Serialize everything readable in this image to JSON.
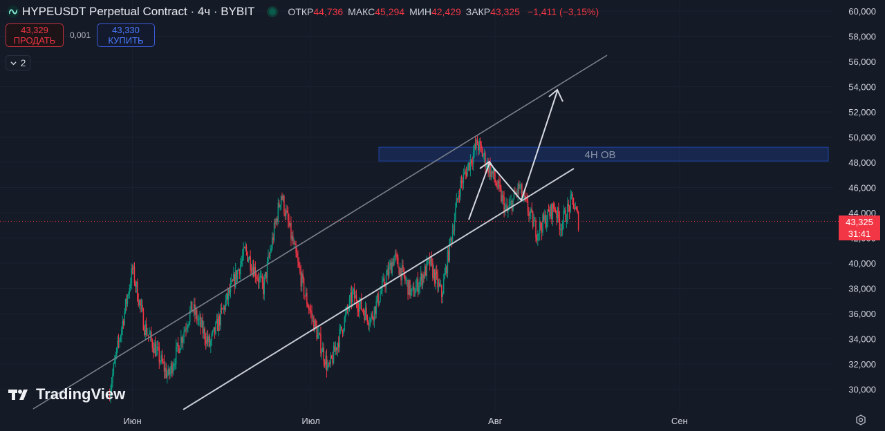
{
  "header": {
    "title": "HYPEUSDT Perpetual Contract · 4ч · BYBIT",
    "open_label": "ОТКР",
    "open_value": "44,736",
    "high_label": "МАКС",
    "high_value": "45,294",
    "low_label": "МИН",
    "low_value": "42,429",
    "close_label": "ЗАКР",
    "close_value": "43,325",
    "change": "−1,411 (−3,15%)"
  },
  "trade": {
    "sell_price": "43,329",
    "sell_label": "ПРОДАТЬ",
    "spread": "0,001",
    "buy_price": "43,330",
    "buy_label": "КУПИТЬ"
  },
  "indicators_collapse_count": "2",
  "brand": "TradingView",
  "price_tag": {
    "price": "43,325",
    "countdown": "31:41"
  },
  "colors": {
    "up": "#089981",
    "down": "#f23645",
    "background": "#141a26",
    "zone": "#2962ff"
  },
  "chart_data": {
    "type": "candlestick",
    "y_ticks": [
      "60,000",
      "58,000",
      "56,000",
      "54,000",
      "52,000",
      "50,000",
      "48,000",
      "46,000",
      "44,000",
      "42,000",
      "40,000",
      "38,000",
      "36,000",
      "34,000",
      "32,000",
      "30,000"
    ],
    "x_labels": [
      "Июн",
      "Июл",
      "Авг",
      "Сен"
    ],
    "ylim": [
      28500,
      60500
    ],
    "last_price": 43.325,
    "zone_label": "4H OB",
    "zone_range": [
      48.1,
      49.2
    ],
    "waypoints": [
      [
        "05-28",
        29.5
      ],
      [
        "06-01",
        39.5
      ],
      [
        "06-03",
        35.0
      ],
      [
        "06-07",
        31.0
      ],
      [
        "06-11",
        36.5
      ],
      [
        "06-14",
        33.5
      ],
      [
        "06-20",
        41.0
      ],
      [
        "06-23",
        38.0
      ],
      [
        "06-26",
        45.5
      ],
      [
        "06-30",
        37.5
      ],
      [
        "07-04",
        31.5
      ],
      [
        "07-08",
        37.5
      ],
      [
        "07-11",
        35.5
      ],
      [
        "07-15",
        40.5
      ],
      [
        "07-18",
        37.5
      ],
      [
        "07-21",
        40.0
      ],
      [
        "07-23",
        37.5
      ],
      [
        "07-26",
        46.0
      ],
      [
        "07-29",
        49.5
      ],
      [
        "08-01",
        46.5
      ],
      [
        "08-03",
        44.0
      ],
      [
        "08-05",
        46.0
      ],
      [
        "08-08",
        42.5
      ],
      [
        "08-11",
        44.5
      ],
      [
        "08-12",
        43.0
      ],
      [
        "08-14",
        45.0
      ],
      [
        "08-15",
        43.3
      ]
    ]
  }
}
